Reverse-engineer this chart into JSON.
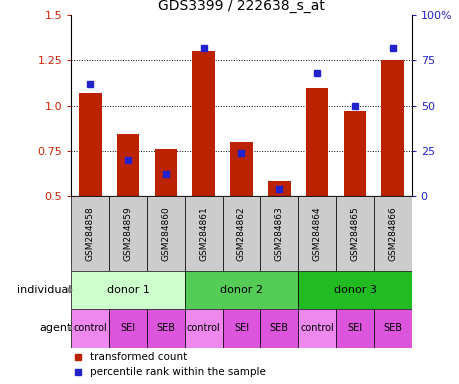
{
  "title": "GDS3399 / 222638_s_at",
  "samples": [
    "GSM284858",
    "GSM284859",
    "GSM284860",
    "GSM284861",
    "GSM284862",
    "GSM284863",
    "GSM284864",
    "GSM284865",
    "GSM284866"
  ],
  "transformed_count": [
    1.07,
    0.84,
    0.76,
    1.3,
    0.8,
    0.58,
    1.1,
    0.97,
    1.25
  ],
  "percentile_rank": [
    62,
    20,
    12,
    82,
    24,
    4,
    68,
    50,
    82
  ],
  "ylim_left": [
    0.5,
    1.5
  ],
  "ylim_right": [
    0,
    100
  ],
  "yticks_left": [
    0.5,
    0.75,
    1.0,
    1.25,
    1.5
  ],
  "yticks_right": [
    0,
    25,
    50,
    75,
    100
  ],
  "bar_color": "#bb2200",
  "dot_color": "#2222cc",
  "individuals": [
    {
      "label": "donor 1",
      "start": 0,
      "end": 3,
      "color": "#ccffcc"
    },
    {
      "label": "donor 2",
      "start": 3,
      "end": 6,
      "color": "#55cc55"
    },
    {
      "label": "donor 3",
      "start": 6,
      "end": 9,
      "color": "#22bb22"
    }
  ],
  "agents": [
    "control",
    "SEI",
    "SEB",
    "control",
    "SEI",
    "SEB",
    "control",
    "SEI",
    "SEB"
  ],
  "agent_colors": [
    "#ee88ee",
    "#dd55dd",
    "#dd55dd",
    "#ee88ee",
    "#dd55dd",
    "#dd55dd",
    "#ee88ee",
    "#dd55dd",
    "#dd55dd"
  ],
  "sample_bg_color": "#cccccc",
  "xlabel_individual": "individual",
  "xlabel_agent": "agent",
  "legend_labels": [
    "transformed count",
    "percentile rank within the sample"
  ]
}
